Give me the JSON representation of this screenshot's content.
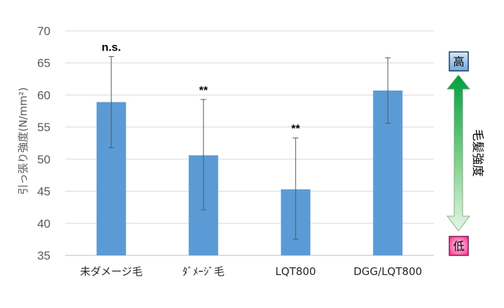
{
  "chart_data": {
    "type": "bar",
    "categories": [
      "未ダメージ毛",
      "ﾀﾞﾒｰｼﾞ毛",
      "LQT800",
      "DGG/LQT800"
    ],
    "values": [
      58.9,
      50.6,
      45.3,
      60.7
    ],
    "error_low": [
      51.8,
      42.1,
      37.5,
      55.6
    ],
    "error_high": [
      66.0,
      59.3,
      53.3,
      65.8
    ],
    "significance": [
      "n.s.",
      "**",
      "**",
      ""
    ],
    "ylabel": "引っ張り強度(N/mm²)",
    "ylim": [
      35,
      70
    ],
    "yticks": [
      35,
      40,
      45,
      50,
      55,
      60,
      65,
      70
    ],
    "grid": true,
    "bar_color": "#5b9bd5"
  },
  "scale_indicator": {
    "label": "毛髪強度",
    "high": "高",
    "low": "低",
    "high_color": "#9dc3e6",
    "low_color": "#ff3399",
    "arrow_color": "#00b050"
  }
}
